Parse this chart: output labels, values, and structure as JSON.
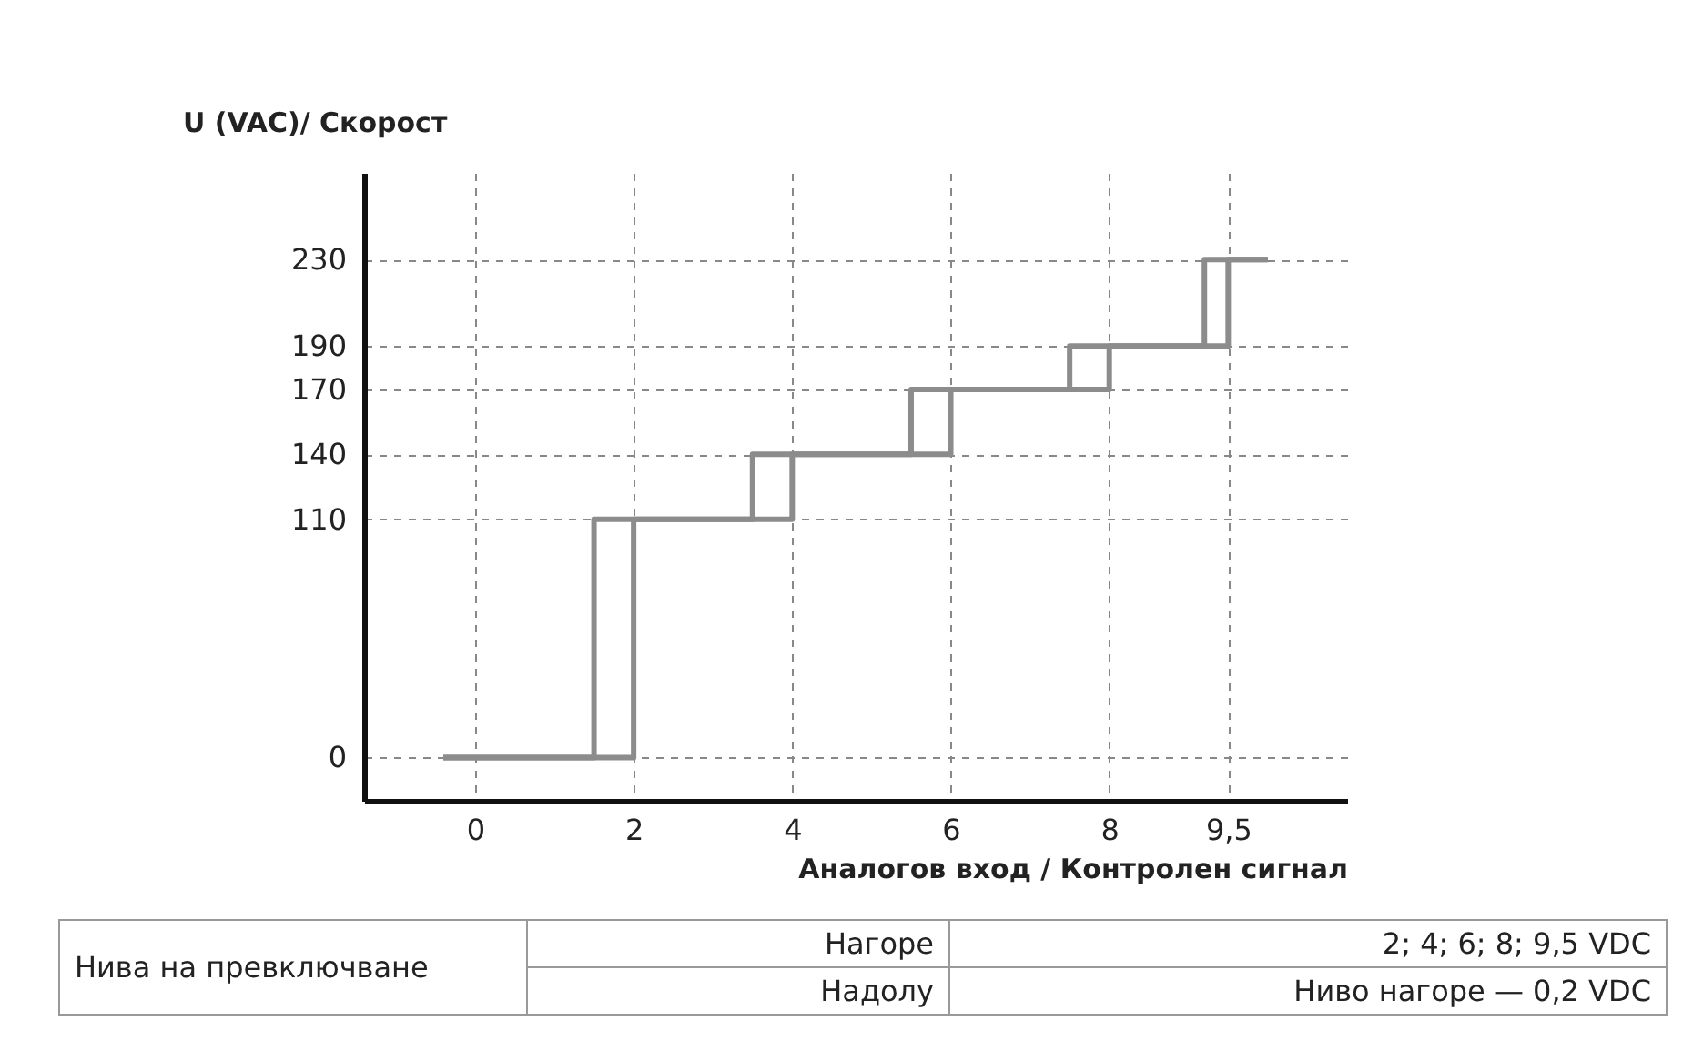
{
  "chart_data": {
    "type": "step",
    "xlabel": "Аналогов вход / Контролен сигнал",
    "ylabel": "U (VAC)/ Скорост",
    "xlim": [
      -1.4,
      11
    ],
    "xticks": [
      0,
      2,
      4,
      6,
      8,
      {
        "value": 9.5,
        "label": "9,5"
      }
    ],
    "ylim": [
      -20,
      270
    ],
    "yticks": [
      0,
      110,
      140,
      170,
      190,
      230
    ],
    "grid": true,
    "marker": "none",
    "line_style": "solid",
    "series": [
      {
        "color": "#8c8c8c",
        "x": [
          -0.4,
          2,
          4,
          6,
          8,
          9.5,
          10
        ],
        "values": [
          0,
          0,
          110,
          140,
          170,
          190,
          230
        ]
      },
      {
        "color": "#8c8c8c",
        "x": [
          -0.4,
          1.5,
          3.5,
          5.5,
          7.5,
          9.2,
          10
        ],
        "values": [
          0,
          0,
          110,
          140,
          170,
          190,
          230
        ]
      }
    ],
    "annotations": [
      "Нива на превключване",
      "Нагоре",
      "2; 4; 6; 8; 9,5 VDC",
      "Надолу",
      "Ниво нагоре — 0,2 VDC"
    ]
  }
}
